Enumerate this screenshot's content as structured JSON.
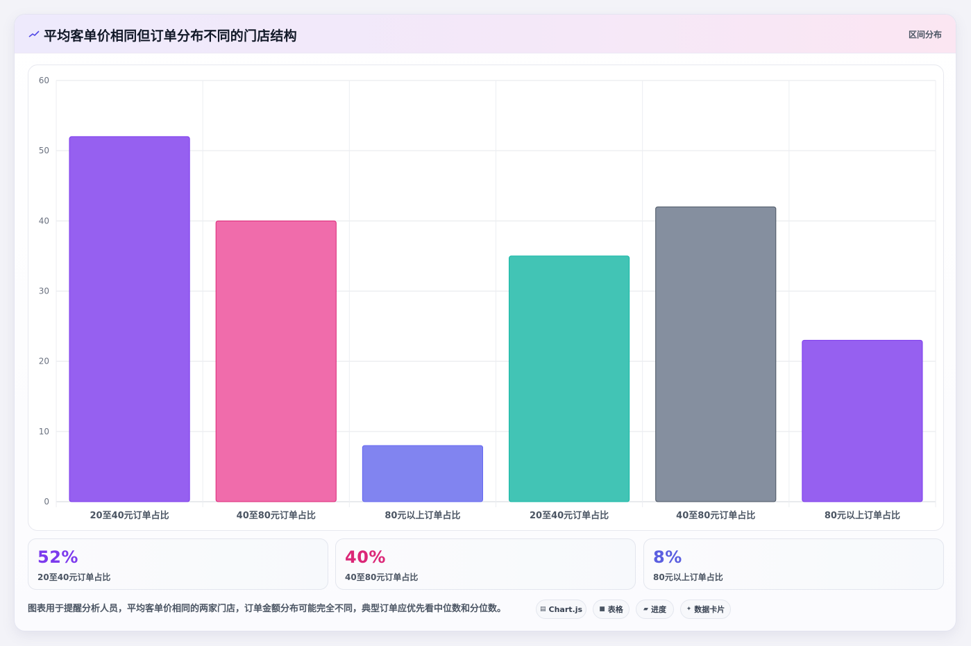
{
  "header": {
    "title": "平均客单价相同但订单分布不同的门店结构",
    "tag": "区间分布"
  },
  "chart_data": {
    "type": "bar",
    "categories": [
      "20至40元订单占比",
      "40至80元订单占比",
      "80元以上订单占比",
      "20至40元订单占比",
      "40至80元订单占比",
      "80元以上订单占比"
    ],
    "values": [
      52,
      40,
      8,
      35,
      42,
      23
    ],
    "bar_colors": [
      "#9660f0",
      "#f06cab",
      "#8184f0",
      "#42c4b5",
      "#858f9f",
      "#9660f0"
    ],
    "bar_borders": [
      "#7c3aed",
      "#db2777",
      "#6366f1",
      "#14b8a6",
      "#4b5563",
      "#7c3aed"
    ],
    "ylim": [
      0,
      60
    ],
    "yticks": [
      0,
      10,
      20,
      30,
      40,
      50,
      60
    ],
    "grid": true
  },
  "stats": [
    {
      "value": "52%",
      "label": "20至40元订单占比",
      "color": "#7c3aed"
    },
    {
      "value": "40%",
      "label": "40至80元订单占比",
      "color": "#db2777"
    },
    {
      "value": "8%",
      "label": "80元以上订单占比",
      "color": "#5b5fe0"
    }
  ],
  "footnote": "图表用于提醒分析人员，平均客单价相同的两家门店，订单金额分布可能完全不同，典型订单应优先看中位数和分位数。",
  "chips": [
    {
      "icon": "▤",
      "label": "Chart.js"
    },
    {
      "icon": "■",
      "label": "表格"
    },
    {
      "icon": "▰",
      "label": "进度"
    },
    {
      "icon": "✦",
      "label": "数据卡片"
    }
  ]
}
